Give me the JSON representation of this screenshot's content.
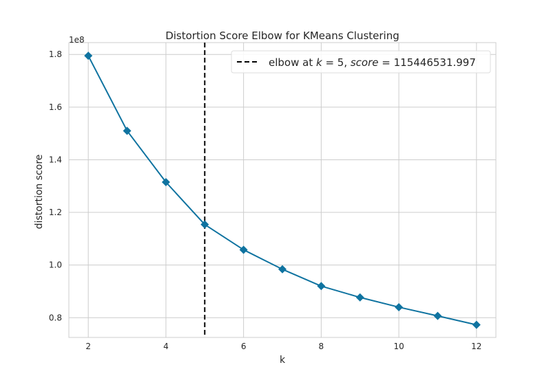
{
  "chart_data": {
    "type": "line",
    "title": "Distortion Score Elbow for KMeans Clustering",
    "xlabel": "k",
    "ylabel": "distortion score",
    "y_multiplier_label": "1e8",
    "x": [
      2,
      3,
      4,
      5,
      6,
      7,
      8,
      9,
      10,
      11,
      12
    ],
    "series": [
      {
        "values": [
          1.795,
          1.51,
          1.315,
          1.154,
          1.058,
          0.984,
          0.92,
          0.877,
          0.84,
          0.807,
          0.773
        ],
        "color": "#0f73a0",
        "marker": "diamond"
      }
    ],
    "xlim": [
      1.5,
      12.5
    ],
    "ylim": [
      0.725,
      1.845
    ],
    "xticks": [
      2,
      4,
      6,
      8,
      10,
      12
    ],
    "yticks": [
      0.8,
      1.0,
      1.2,
      1.4,
      1.6,
      1.8
    ],
    "xtick_labels": [
      "2",
      "4",
      "6",
      "8",
      "10",
      "12"
    ],
    "ytick_labels": [
      "0.8",
      "1.0",
      "1.2",
      "1.4",
      "1.6",
      "1.8"
    ],
    "grid": true,
    "elbow": {
      "x": 5,
      "color": "#000000",
      "style": "dashed"
    },
    "legend": {
      "placement": "top-right",
      "prefix": "elbow at ",
      "k_symbol": "k",
      "k_equals": " = 5, ",
      "score_symbol": "score",
      "score_equals": " = 115446531.997"
    }
  }
}
